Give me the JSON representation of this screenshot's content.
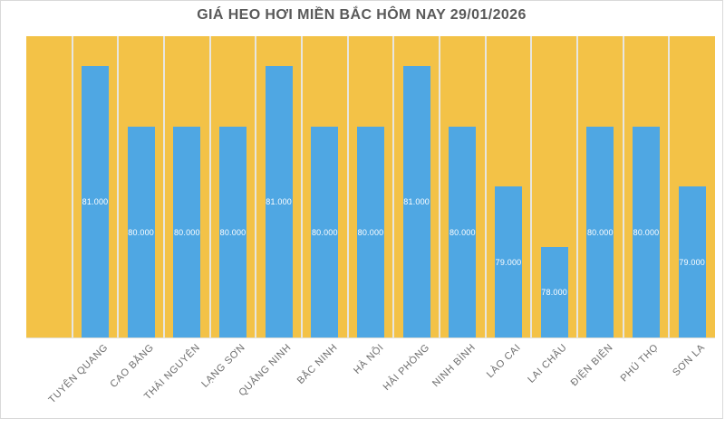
{
  "chart_data": {
    "type": "bar",
    "title": "GIÁ HEO HƠI MIỀN BẮC HÔM NAY 29/01/2026",
    "categories": [
      "TUYÊN QUANG",
      "CAO BẰNG",
      "THÁI NGUYÊN",
      "LẠNG SƠN",
      "QUẢNG NINH",
      "BẮC NINH",
      "HÀ NỘI",
      "HẢI PHÒNG",
      "NINH BÌNH",
      "LÀO CAI",
      "LAI CHÂU",
      "ĐIỆN BIÊN",
      "PHÚ THỌ",
      "SƠN LA"
    ],
    "values": [
      81000,
      80000,
      80000,
      80000,
      81000,
      80000,
      80000,
      81000,
      80000,
      79000,
      78000,
      80000,
      80000,
      79000
    ],
    "value_labels": [
      "81.000",
      "80.000",
      "80.000",
      "80.000",
      "81.000",
      "80.000",
      "80.000",
      "81.000",
      "80.000",
      "79.000",
      "78.000",
      "80.000",
      "80.000",
      "79.000"
    ],
    "xlabel": "",
    "ylabel": "",
    "ylim": [
      76500,
      81500
    ],
    "legend": "none",
    "grid": "vertical-gridlines-between-categories",
    "leading_empty_slots": 1,
    "x_label_rotation_deg": 45,
    "colors": {
      "bar": "#4FA7E3",
      "plot_background": "#F3C247",
      "gridline": "#E7E6E0",
      "title_text": "#595959",
      "axis_label_text": "#6E6E6E",
      "value_label_text": "#FFFFFF",
      "page_background": "#FFFFFF",
      "frame_border": "#D9D9D9"
    }
  }
}
